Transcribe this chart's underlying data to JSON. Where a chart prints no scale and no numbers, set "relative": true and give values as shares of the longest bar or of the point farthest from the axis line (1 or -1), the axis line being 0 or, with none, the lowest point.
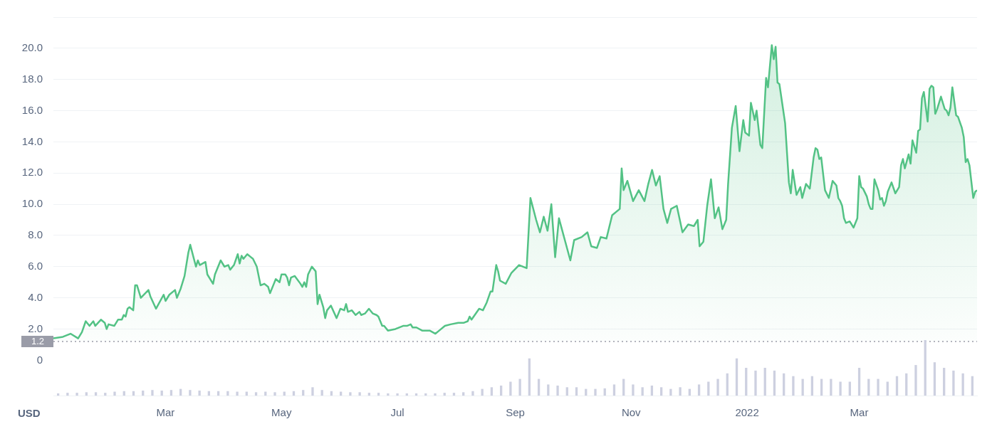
{
  "chart_data": [
    {
      "type": "area",
      "x": [
        "2021-01-01",
        "2021-01-06",
        "2021-01-10",
        "2021-01-14",
        "2021-01-16",
        "2021-01-18",
        "2021-01-20",
        "2021-01-22",
        "2021-01-23",
        "2021-01-26",
        "2021-01-28",
        "2021-01-29",
        "2021-01-30",
        "2021-02-02",
        "2021-02-04",
        "2021-02-06",
        "2021-02-07",
        "2021-02-08",
        "2021-02-09",
        "2021-02-10",
        "2021-02-12",
        "2021-02-13",
        "2021-02-14",
        "2021-02-16",
        "2021-02-20",
        "2021-02-21",
        "2021-02-24",
        "2021-02-28",
        "2021-03-01",
        "2021-03-03",
        "2021-03-06",
        "2021-03-07",
        "2021-03-09",
        "2021-03-11",
        "2021-03-13",
        "2021-03-14",
        "2021-03-17",
        "2021-03-18",
        "2021-03-19",
        "2021-03-22",
        "2021-03-23",
        "2021-03-26",
        "2021-03-27",
        "2021-03-30",
        "2021-04-01",
        "2021-04-03",
        "2021-04-04",
        "2021-04-06",
        "2021-04-08",
        "2021-04-09",
        "2021-04-10",
        "2021-04-11",
        "2021-04-13",
        "2021-04-15",
        "2021-04-16",
        "2021-04-18",
        "2021-04-20",
        "2021-04-22",
        "2021-04-24",
        "2021-04-25",
        "2021-04-27",
        "2021-04-28",
        "2021-04-30",
        "2021-05-01",
        "2021-05-03",
        "2021-05-04",
        "2021-05-05",
        "2021-05-06",
        "2021-05-08",
        "2021-05-11",
        "2021-05-12",
        "2021-05-13",
        "2021-05-14",
        "2021-05-15",
        "2021-05-17",
        "2021-05-19",
        "2021-05-20",
        "2021-05-21",
        "2021-05-23",
        "2021-05-24",
        "2021-05-25",
        "2021-05-27",
        "2021-05-30",
        "2021-06-01",
        "2021-06-03",
        "2021-06-04",
        "2021-06-05",
        "2021-06-07",
        "2021-06-09",
        "2021-06-11",
        "2021-06-12",
        "2021-06-14",
        "2021-06-16",
        "2021-06-18",
        "2021-06-20",
        "2021-06-21",
        "2021-06-23",
        "2021-06-24",
        "2021-06-26",
        "2021-06-30",
        "2021-07-04",
        "2021-07-06",
        "2021-07-08",
        "2021-07-09",
        "2021-07-11",
        "2021-07-14",
        "2021-07-16",
        "2021-07-18",
        "2021-07-21",
        "2021-07-23",
        "2021-07-26",
        "2021-07-29",
        "2021-08-02",
        "2021-08-05",
        "2021-08-07",
        "2021-08-08",
        "2021-08-09",
        "2021-08-13",
        "2021-08-15",
        "2021-08-17",
        "2021-08-19",
        "2021-08-20",
        "2021-08-22",
        "2021-08-23",
        "2021-08-24",
        "2021-08-27",
        "2021-08-30",
        "2021-09-03",
        "2021-09-07",
        "2021-09-09",
        "2021-09-12",
        "2021-09-14",
        "2021-09-16",
        "2021-09-18",
        "2021-09-20",
        "2021-09-22",
        "2021-09-24",
        "2021-09-30",
        "2021-10-02",
        "2021-10-06",
        "2021-10-09",
        "2021-10-11",
        "2021-10-14",
        "2021-10-16",
        "2021-10-19",
        "2021-10-22",
        "2021-10-26",
        "2021-10-27",
        "2021-10-28",
        "2021-10-30",
        "2021-11-02",
        "2021-11-05",
        "2021-11-08",
        "2021-11-10",
        "2021-11-12",
        "2021-11-14",
        "2021-11-16",
        "2021-11-18",
        "2021-11-20",
        "2021-11-22",
        "2021-11-25",
        "2021-11-28",
        "2021-12-01",
        "2021-12-04",
        "2021-12-06",
        "2021-12-07",
        "2021-12-09",
        "2021-12-11",
        "2021-12-13",
        "2021-12-15",
        "2021-12-17",
        "2021-12-19",
        "2021-12-21",
        "2021-12-22",
        "2021-12-24",
        "2021-12-26",
        "2021-12-28",
        "2021-12-30",
        "2021-12-31",
        "2022-01-02",
        "2022-01-03",
        "2022-01-05",
        "2022-01-06",
        "2022-01-08",
        "2022-01-09",
        "2022-01-11",
        "2022-01-12",
        "2022-01-14",
        "2022-01-15",
        "2022-01-16",
        "2022-01-17",
        "2022-01-18",
        "2022-01-21",
        "2022-01-23",
        "2022-01-24",
        "2022-01-25",
        "2022-01-27",
        "2022-01-29",
        "2022-01-30",
        "2022-02-01",
        "2022-02-03",
        "2022-02-05",
        "2022-02-06",
        "2022-02-07",
        "2022-02-08",
        "2022-02-09",
        "2022-02-11",
        "2022-02-13",
        "2022-02-15",
        "2022-02-17",
        "2022-02-18",
        "2022-02-19",
        "2022-02-20",
        "2022-02-21",
        "2022-02-22",
        "2022-02-24",
        "2022-02-26",
        "2022-02-28",
        "2022-03-01",
        "2022-03-02",
        "2022-03-03",
        "2022-03-05",
        "2022-03-06",
        "2022-03-07",
        "2022-03-08",
        "2022-03-09",
        "2022-03-11",
        "2022-03-12",
        "2022-03-13",
        "2022-03-14",
        "2022-03-15",
        "2022-03-16",
        "2022-03-18",
        "2022-03-20",
        "2022-03-22",
        "2022-03-23",
        "2022-03-24",
        "2022-03-25",
        "2022-03-27",
        "2022-03-28",
        "2022-03-29",
        "2022-03-31",
        "2022-04-01",
        "2022-04-02",
        "2022-04-03",
        "2022-04-04",
        "2022-04-06",
        "2022-04-07",
        "2022-04-08",
        "2022-04-09",
        "2022-04-10",
        "2022-04-11",
        "2022-04-13",
        "2022-04-15",
        "2022-04-16",
        "2022-04-17",
        "2022-04-18",
        "2022-04-19",
        "2022-04-21",
        "2022-04-22",
        "2022-04-24",
        "2022-04-25",
        "2022-04-26",
        "2022-04-27",
        "2022-04-28",
        "2022-04-30",
        "2022-05-01",
        "2022-05-02"
      ],
      "series": [
        {
          "color": "#53c285",
          "values": [
            1.4,
            1.5,
            1.7,
            1.4,
            1.8,
            2.5,
            2.2,
            2.5,
            2.2,
            2.6,
            2.4,
            2.0,
            2.3,
            2.2,
            2.6,
            2.6,
            2.9,
            2.8,
            3.3,
            3.4,
            3.2,
            4.8,
            4.8,
            4.0,
            4.5,
            4.1,
            3.3,
            4.2,
            3.8,
            4.2,
            4.5,
            4.0,
            4.6,
            5.4,
            6.9,
            7.4,
            6.0,
            6.4,
            6.1,
            6.3,
            5.5,
            4.9,
            5.5,
            6.4,
            6.0,
            6.1,
            5.8,
            6.1,
            6.8,
            6.2,
            6.7,
            6.5,
            6.8,
            6.6,
            6.5,
            6.0,
            4.8,
            4.9,
            4.7,
            4.3,
            4.9,
            5.2,
            5.0,
            5.5,
            5.5,
            5.3,
            4.8,
            5.3,
            5.4,
            4.9,
            4.7,
            5.0,
            4.7,
            5.5,
            6.0,
            5.7,
            3.6,
            4.2,
            3.4,
            2.7,
            3.2,
            3.5,
            2.7,
            3.3,
            3.2,
            3.6,
            3.1,
            3.2,
            2.9,
            3.1,
            2.9,
            3.0,
            3.3,
            3.0,
            2.9,
            2.8,
            2.2,
            2.2,
            1.9,
            2.0,
            2.2,
            2.2,
            2.3,
            2.1,
            2.1,
            1.9,
            1.9,
            1.9,
            1.7,
            1.9,
            2.2,
            2.3,
            2.4,
            2.4,
            2.5,
            2.8,
            2.6,
            3.3,
            3.2,
            3.7,
            4.4,
            4.4,
            6.1,
            5.7,
            5.1,
            4.9,
            5.6,
            6.1,
            5.9,
            10.4,
            9.0,
            8.2,
            9.2,
            8.3,
            10.0,
            6.6,
            9.1,
            6.4,
            7.7,
            7.9,
            8.2,
            7.3,
            7.2,
            7.9,
            7.8,
            9.3,
            9.7,
            12.3,
            10.9,
            11.5,
            10.2,
            10.9,
            10.2,
            11.3,
            12.2,
            11.2,
            11.8,
            9.7,
            8.8,
            9.7,
            9.9,
            8.2,
            8.7,
            8.6,
            9.0,
            7.3,
            7.6,
            9.9,
            11.6,
            9.1,
            9.8,
            8.4,
            9.0,
            11.3,
            14.9,
            16.3,
            13.4,
            15.4,
            14.6,
            14.4,
            16.5,
            15.4,
            16.0,
            13.8,
            13.6,
            18.1,
            17.5,
            20.2,
            19.3,
            20.1,
            17.8,
            17.7,
            15.2,
            11.4,
            10.7,
            12.2,
            10.6,
            11.1,
            10.4,
            11.3,
            11.0,
            13.0,
            13.6,
            13.5,
            12.9,
            13.0,
            10.9,
            10.4,
            11.5,
            11.2,
            10.4,
            10.2,
            9.9,
            9.1,
            8.8,
            8.9,
            8.5,
            9.1,
            11.8,
            11.1,
            11.0,
            10.5,
            10.0,
            9.7,
            9.7,
            11.6,
            10.9,
            10.3,
            10.4,
            9.9,
            10.2,
            10.8,
            11.4,
            10.7,
            11.1,
            12.5,
            12.9,
            12.3,
            13.2,
            12.6,
            14.1,
            13.3,
            14.7,
            14.8,
            16.8,
            17.2,
            15.3,
            17.4,
            17.6,
            17.5,
            15.8,
            16.1,
            16.9,
            16.1,
            16.0,
            15.7,
            16.2,
            17.5,
            15.7,
            15.6,
            14.9,
            14.3,
            12.7,
            12.9,
            12.5,
            10.4,
            10.8,
            10.9
          ]
        }
      ],
      "xlim": [
        "2021-01-01",
        "2022-05-02"
      ],
      "xticks": [
        {
          "value": "2021-03-01",
          "label": "Mar"
        },
        {
          "value": "2021-05-01",
          "label": "May"
        },
        {
          "value": "2021-07-01",
          "label": "Jul"
        },
        {
          "value": "2021-09-01",
          "label": "Sep"
        },
        {
          "value": "2021-11-01",
          "label": "Nov"
        },
        {
          "value": "2022-01-01",
          "label": "2022"
        },
        {
          "value": "2022-03-01",
          "label": "Mar"
        }
      ],
      "ylim": [
        1.2,
        22
      ],
      "yticks": [
        {
          "value": 2,
          "label": "2.0"
        },
        {
          "value": 4,
          "label": "4.0"
        },
        {
          "value": 6,
          "label": "6.0"
        },
        {
          "value": 8,
          "label": "8.0"
        },
        {
          "value": 10,
          "label": "10.0"
        },
        {
          "value": 12,
          "label": "12.0"
        },
        {
          "value": 14,
          "label": "14.0"
        },
        {
          "value": 16,
          "label": "16.0"
        },
        {
          "value": 18,
          "label": "18.0"
        },
        {
          "value": 20,
          "label": "20.0"
        }
      ],
      "grid": "y",
      "marker": "none",
      "legend": false,
      "ref_lines": [
        {
          "axis": "y",
          "value": 1.2,
          "label": "1.2",
          "line_style": "dotted",
          "color": "#9a9ca8"
        }
      ],
      "annotations": [
        "USD"
      ]
    },
    {
      "type": "bar",
      "relative": true,
      "tick_labels": false,
      "legend": false,
      "color": "#cdd0e0",
      "categories": [
        null,
        null,
        null,
        null,
        null,
        null,
        null,
        null,
        null,
        null,
        null,
        null,
        null,
        null,
        null,
        null,
        null,
        null,
        null,
        null,
        null,
        null,
        null,
        null,
        null,
        null,
        null,
        null,
        null,
        null,
        null,
        null,
        null,
        null,
        null,
        null,
        null,
        null,
        null,
        null,
        null,
        null,
        null,
        null,
        null,
        null,
        null,
        null,
        null,
        null,
        null,
        null,
        null,
        null,
        null,
        null,
        null,
        null,
        null,
        null,
        null,
        null,
        null,
        null,
        null,
        null,
        null,
        null,
        null,
        null,
        null,
        null,
        null,
        null,
        null,
        null,
        null,
        null,
        null,
        null,
        null,
        null,
        null,
        null,
        null,
        null,
        null,
        null,
        null,
        null,
        null,
        null,
        null,
        null,
        null,
        null,
        null,
        null
      ],
      "values": [
        0.04,
        0.05,
        0.05,
        0.06,
        0.06,
        0.05,
        0.07,
        0.08,
        0.08,
        0.09,
        0.1,
        0.09,
        0.1,
        0.12,
        0.1,
        0.09,
        0.08,
        0.08,
        0.08,
        0.07,
        0.07,
        0.06,
        0.07,
        0.06,
        0.07,
        0.08,
        0.1,
        0.15,
        0.1,
        0.08,
        0.07,
        0.06,
        0.06,
        0.05,
        0.05,
        0.04,
        0.04,
        0.04,
        0.04,
        0.04,
        0.04,
        0.05,
        0.05,
        0.06,
        0.08,
        0.12,
        0.15,
        0.18,
        0.25,
        0.3,
        0.67,
        0.3,
        0.2,
        0.18,
        0.15,
        0.15,
        0.12,
        0.12,
        0.13,
        0.2,
        0.3,
        0.2,
        0.15,
        0.18,
        0.15,
        0.12,
        0.15,
        0.12,
        0.2,
        0.25,
        0.3,
        0.4,
        0.67,
        0.5,
        0.45,
        0.5,
        0.45,
        0.4,
        0.35,
        0.3,
        0.35,
        0.3,
        0.3,
        0.25,
        0.25,
        0.5,
        0.3,
        0.3,
        0.25,
        0.35,
        0.4,
        0.55,
        1.0,
        0.6,
        0.5,
        0.45,
        0.4,
        0.35
      ],
      "annotations": [
        "0"
      ]
    }
  ]
}
